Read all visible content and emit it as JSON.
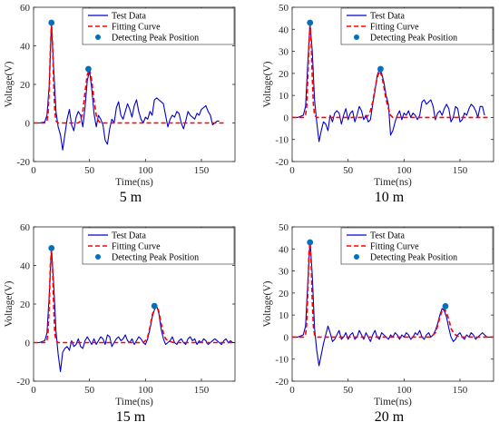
{
  "figure": {
    "panels": [
      {
        "caption": "5 m"
      },
      {
        "caption": "10 m"
      },
      {
        "caption": "15 m"
      },
      {
        "caption": "20 m"
      }
    ]
  },
  "colors": {
    "test_data": "#0000cd",
    "fitting_curve": "#ff0000",
    "peak_marker": "#0072bd"
  },
  "chart_data": [
    {
      "type": "line",
      "caption": "5 m",
      "xlabel": "Time(ns)",
      "ylabel": "Voltage(V)",
      "xlim": [
        0,
        180
      ],
      "ylim": [
        -20,
        60
      ],
      "xticks": [
        0,
        50,
        100,
        150
      ],
      "yticks": [
        -20,
        0,
        20,
        40,
        60
      ],
      "legend": {
        "position": "top-right",
        "entries": [
          "Test Data",
          "Fitting Curve",
          "Detecting Peak Position"
        ]
      },
      "series": [
        {
          "name": "Test Data",
          "style": "solid",
          "x": [
            0,
            5,
            10,
            12,
            14,
            16,
            18,
            20,
            22,
            24,
            26,
            28,
            30,
            32,
            34,
            36,
            38,
            40,
            42,
            44,
            46,
            48,
            50,
            52,
            54,
            56,
            58,
            60,
            62,
            64,
            66,
            68,
            70,
            72,
            74,
            76,
            78,
            80,
            82,
            84,
            86,
            88,
            90,
            92,
            94,
            96,
            98,
            100,
            102,
            104,
            106,
            108,
            110,
            112,
            114,
            116,
            118,
            120,
            122,
            124,
            126,
            128,
            130,
            132,
            134,
            136,
            138,
            140,
            142,
            144,
            146,
            148,
            150,
            152,
            154,
            156,
            158,
            160,
            162,
            164,
            166
          ],
          "y": [
            0,
            0,
            0.5,
            4,
            20,
            52,
            28,
            6,
            -2,
            -6,
            -14,
            -6,
            2,
            7,
            -1,
            -4,
            3,
            6,
            4,
            -2,
            8,
            22,
            27,
            18,
            5,
            -2,
            4,
            2,
            -1,
            -9,
            -11,
            -3,
            2,
            0,
            8,
            11,
            4,
            2,
            6,
            10,
            7,
            3,
            9,
            12,
            6,
            2,
            0,
            3,
            2,
            6,
            4,
            12,
            13,
            12,
            11,
            10,
            4,
            -2,
            2,
            4,
            3,
            6,
            5,
            0,
            -3,
            1,
            6,
            4,
            3,
            2,
            5,
            4,
            7,
            8,
            9,
            6,
            4,
            -1,
            0,
            1,
            1
          ]
        },
        {
          "name": "Fitting Curve",
          "style": "dashed",
          "x": [
            0,
            10,
            12,
            13,
            14,
            15,
            16,
            17,
            18,
            19,
            20,
            22,
            30,
            40,
            42,
            44,
            46,
            48,
            50,
            52,
            54,
            56,
            58,
            60,
            70,
            100,
            150,
            170
          ],
          "y": [
            0,
            0,
            1,
            5,
            18,
            38,
            52,
            40,
            20,
            6,
            1,
            0,
            0,
            0,
            1,
            6,
            16,
            25,
            28,
            22,
            12,
            4,
            1,
            0,
            0,
            0,
            0,
            0
          ]
        },
        {
          "name": "Detecting Peak Position",
          "style": "marker",
          "x": [
            16,
            49
          ],
          "y": [
            52,
            28
          ]
        }
      ]
    },
    {
      "type": "line",
      "caption": "10 m",
      "xlabel": "Time(ns)",
      "ylabel": "Voltage(V)",
      "xlim": [
        0,
        180
      ],
      "ylim": [
        -20,
        50
      ],
      "xticks": [
        0,
        50,
        100,
        150
      ],
      "yticks": [
        -20,
        -10,
        0,
        10,
        20,
        30,
        40,
        50
      ],
      "legend": {
        "position": "top-right",
        "entries": [
          "Test Data",
          "Fitting Curve",
          "Detecting Peak Position"
        ]
      },
      "series": [
        {
          "name": "Test Data",
          "style": "solid",
          "x": [
            0,
            5,
            10,
            12,
            14,
            16,
            18,
            20,
            22,
            24,
            26,
            28,
            30,
            32,
            34,
            36,
            38,
            40,
            42,
            44,
            46,
            48,
            50,
            52,
            54,
            56,
            58,
            60,
            62,
            64,
            66,
            68,
            70,
            72,
            74,
            76,
            78,
            80,
            82,
            84,
            86,
            88,
            90,
            92,
            94,
            96,
            98,
            100,
            102,
            104,
            106,
            108,
            110,
            112,
            114,
            116,
            118,
            120,
            122,
            124,
            126,
            128,
            130,
            132,
            134,
            136,
            138,
            140,
            142,
            144,
            146,
            148,
            150,
            152,
            154,
            156,
            158,
            160,
            162,
            164,
            166,
            168,
            170,
            172
          ],
          "y": [
            0,
            0,
            1,
            5,
            25,
            43,
            30,
            8,
            -2,
            -11,
            -6,
            -2,
            -3,
            -6,
            1,
            -2,
            2,
            3,
            2,
            -3,
            1,
            4,
            -1,
            2,
            3,
            -2,
            1,
            5,
            3,
            -1,
            1,
            -2,
            -1,
            6,
            12,
            19,
            22,
            20,
            16,
            10,
            6,
            -8,
            -6,
            -2,
            1,
            3,
            -1,
            2,
            1,
            3,
            0,
            2,
            1,
            -1,
            1,
            7,
            8,
            6,
            7,
            8,
            5,
            -1,
            2,
            3,
            1,
            4,
            6,
            4,
            -2,
            0,
            5,
            4,
            -2,
            -1,
            2,
            1,
            4,
            6,
            5,
            3,
            0,
            5,
            5,
            1
          ]
        },
        {
          "name": "Fitting Curve",
          "style": "dashed",
          "x": [
            0,
            10,
            12,
            13,
            14,
            15,
            16,
            17,
            18,
            19,
            20,
            22,
            30,
            60,
            66,
            68,
            70,
            72,
            74,
            76,
            78,
            80,
            82,
            84,
            86,
            88,
            90,
            92,
            100,
            150,
            175
          ],
          "y": [
            0,
            0,
            1,
            5,
            18,
            33,
            42,
            34,
            18,
            6,
            1,
            0,
            0,
            0,
            0,
            1,
            3,
            7,
            13,
            18,
            21,
            19,
            14,
            8,
            4,
            1,
            0,
            0,
            0,
            0,
            0
          ]
        },
        {
          "name": "Detecting Peak Position",
          "style": "marker",
          "x": [
            16,
            79
          ],
          "y": [
            43,
            22
          ]
        }
      ]
    },
    {
      "type": "line",
      "caption": "15 m",
      "xlabel": "Time(ns)",
      "ylabel": "Voltage(V)",
      "xlim": [
        0,
        180
      ],
      "ylim": [
        -20,
        60
      ],
      "xticks": [
        0,
        50,
        100,
        150
      ],
      "yticks": [
        -20,
        0,
        20,
        40,
        60
      ],
      "legend": {
        "position": "top-right",
        "entries": [
          "Test Data",
          "Fitting Curve",
          "Detecting Peak Position"
        ]
      },
      "series": [
        {
          "name": "Test Data",
          "style": "solid",
          "x": [
            0,
            5,
            10,
            12,
            14,
            16,
            18,
            20,
            22,
            24,
            26,
            28,
            30,
            32,
            34,
            36,
            38,
            40,
            42,
            44,
            46,
            48,
            50,
            52,
            54,
            56,
            58,
            60,
            62,
            64,
            66,
            68,
            70,
            72,
            74,
            76,
            78,
            80,
            82,
            84,
            86,
            88,
            90,
            92,
            94,
            96,
            98,
            100,
            102,
            104,
            106,
            108,
            110,
            112,
            114,
            116,
            118,
            120,
            122,
            124,
            126,
            128,
            130,
            132,
            134,
            136,
            138,
            140,
            142,
            144,
            146,
            148,
            150,
            152,
            154,
            156,
            158,
            160,
            162,
            164,
            166,
            168,
            170,
            172,
            174,
            176,
            178,
            180
          ],
          "y": [
            0,
            0,
            1,
            5,
            25,
            49,
            30,
            6,
            -6,
            -15,
            -5,
            -3,
            -2,
            -4,
            1,
            -2,
            -1,
            2,
            -2,
            -3,
            1,
            3,
            1,
            -1,
            2,
            -1,
            1,
            3,
            2,
            -1,
            4,
            3,
            -2,
            0,
            2,
            3,
            1,
            2,
            4,
            1,
            0,
            2,
            -1,
            1,
            3,
            2,
            0,
            -1,
            2,
            7,
            13,
            17,
            19,
            15,
            7,
            2,
            -1,
            0,
            1,
            3,
            0,
            -1,
            1,
            2,
            0,
            -1,
            2,
            3,
            1,
            2,
            -1,
            1,
            0,
            2,
            1,
            -1,
            0,
            1,
            2,
            1,
            0,
            -1,
            1,
            2,
            0,
            1,
            0,
            0
          ]
        },
        {
          "name": "Fitting Curve",
          "style": "dashed",
          "x": [
            0,
            10,
            12,
            13,
            14,
            15,
            16,
            17,
            18,
            19,
            20,
            22,
            30,
            95,
            98,
            100,
            102,
            104,
            106,
            108,
            110,
            112,
            114,
            116,
            118,
            120,
            125,
            150,
            180
          ],
          "y": [
            0,
            0,
            1,
            6,
            20,
            40,
            48,
            38,
            18,
            5,
            1,
            0,
            0,
            0,
            0,
            1,
            3,
            8,
            14,
            18,
            19,
            16,
            10,
            5,
            2,
            1,
            0,
            0,
            0
          ]
        },
        {
          "name": "Detecting Peak Position",
          "style": "marker",
          "x": [
            16,
            108
          ],
          "y": [
            49,
            19
          ]
        }
      ]
    },
    {
      "type": "line",
      "caption": "20 m",
      "xlabel": "Time(ns)",
      "ylabel": "Voltage(V)",
      "xlim": [
        0,
        180
      ],
      "ylim": [
        -20,
        50
      ],
      "xticks": [
        0,
        50,
        100,
        150
      ],
      "yticks": [
        -20,
        -10,
        0,
        10,
        20,
        30,
        40,
        50
      ],
      "legend": {
        "position": "top-right",
        "entries": [
          "Test Data",
          "Fitting Curve",
          "Detecting Peak Position"
        ]
      },
      "series": [
        {
          "name": "Test Data",
          "style": "solid",
          "x": [
            0,
            5,
            10,
            12,
            14,
            16,
            18,
            20,
            22,
            24,
            26,
            28,
            30,
            32,
            34,
            36,
            38,
            40,
            42,
            44,
            46,
            48,
            50,
            52,
            54,
            56,
            58,
            60,
            62,
            64,
            66,
            68,
            70,
            72,
            74,
            76,
            78,
            80,
            82,
            84,
            86,
            88,
            90,
            92,
            94,
            96,
            98,
            100,
            102,
            104,
            106,
            108,
            110,
            112,
            114,
            116,
            118,
            120,
            122,
            124,
            126,
            128,
            130,
            132,
            134,
            136,
            138,
            140,
            142,
            144,
            146,
            148,
            150,
            152,
            154,
            156,
            158,
            160,
            162,
            164,
            166,
            168,
            170,
            172,
            174,
            176,
            178,
            180
          ],
          "y": [
            0,
            0,
            1,
            5,
            25,
            44,
            28,
            4,
            -6,
            -13,
            -8,
            -3,
            1,
            5,
            2,
            -2,
            -1,
            1,
            3,
            -1,
            0,
            2,
            -1,
            1,
            2,
            -1,
            0,
            3,
            1,
            -1,
            2,
            0,
            -2,
            1,
            3,
            0,
            -1,
            2,
            1,
            0,
            -1,
            1,
            0,
            2,
            1,
            -1,
            1,
            0,
            2,
            1,
            -1,
            0,
            2,
            1,
            3,
            0,
            -1,
            1,
            2,
            0,
            1,
            3,
            6,
            10,
            13,
            12,
            9,
            4,
            0,
            -2,
            -1,
            1,
            2,
            0,
            -1,
            1,
            0,
            2,
            1,
            -1,
            0,
            1,
            2,
            1,
            0,
            0,
            0,
            0
          ]
        },
        {
          "name": "Fitting Curve",
          "style": "dashed",
          "x": [
            0,
            10,
            12,
            13,
            14,
            15,
            16,
            17,
            18,
            19,
            20,
            22,
            30,
            120,
            124,
            126,
            128,
            130,
            132,
            134,
            136,
            138,
            140,
            142,
            144,
            146,
            150,
            180
          ],
          "y": [
            0,
            0,
            1,
            6,
            20,
            38,
            43,
            34,
            16,
            5,
            1,
            0,
            0,
            0,
            0,
            1,
            2,
            5,
            9,
            12,
            13,
            11,
            8,
            4,
            2,
            1,
            0,
            0
          ]
        },
        {
          "name": "Detecting Peak Position",
          "style": "marker",
          "x": [
            16,
            137
          ],
          "y": [
            43,
            14
          ]
        }
      ]
    }
  ]
}
